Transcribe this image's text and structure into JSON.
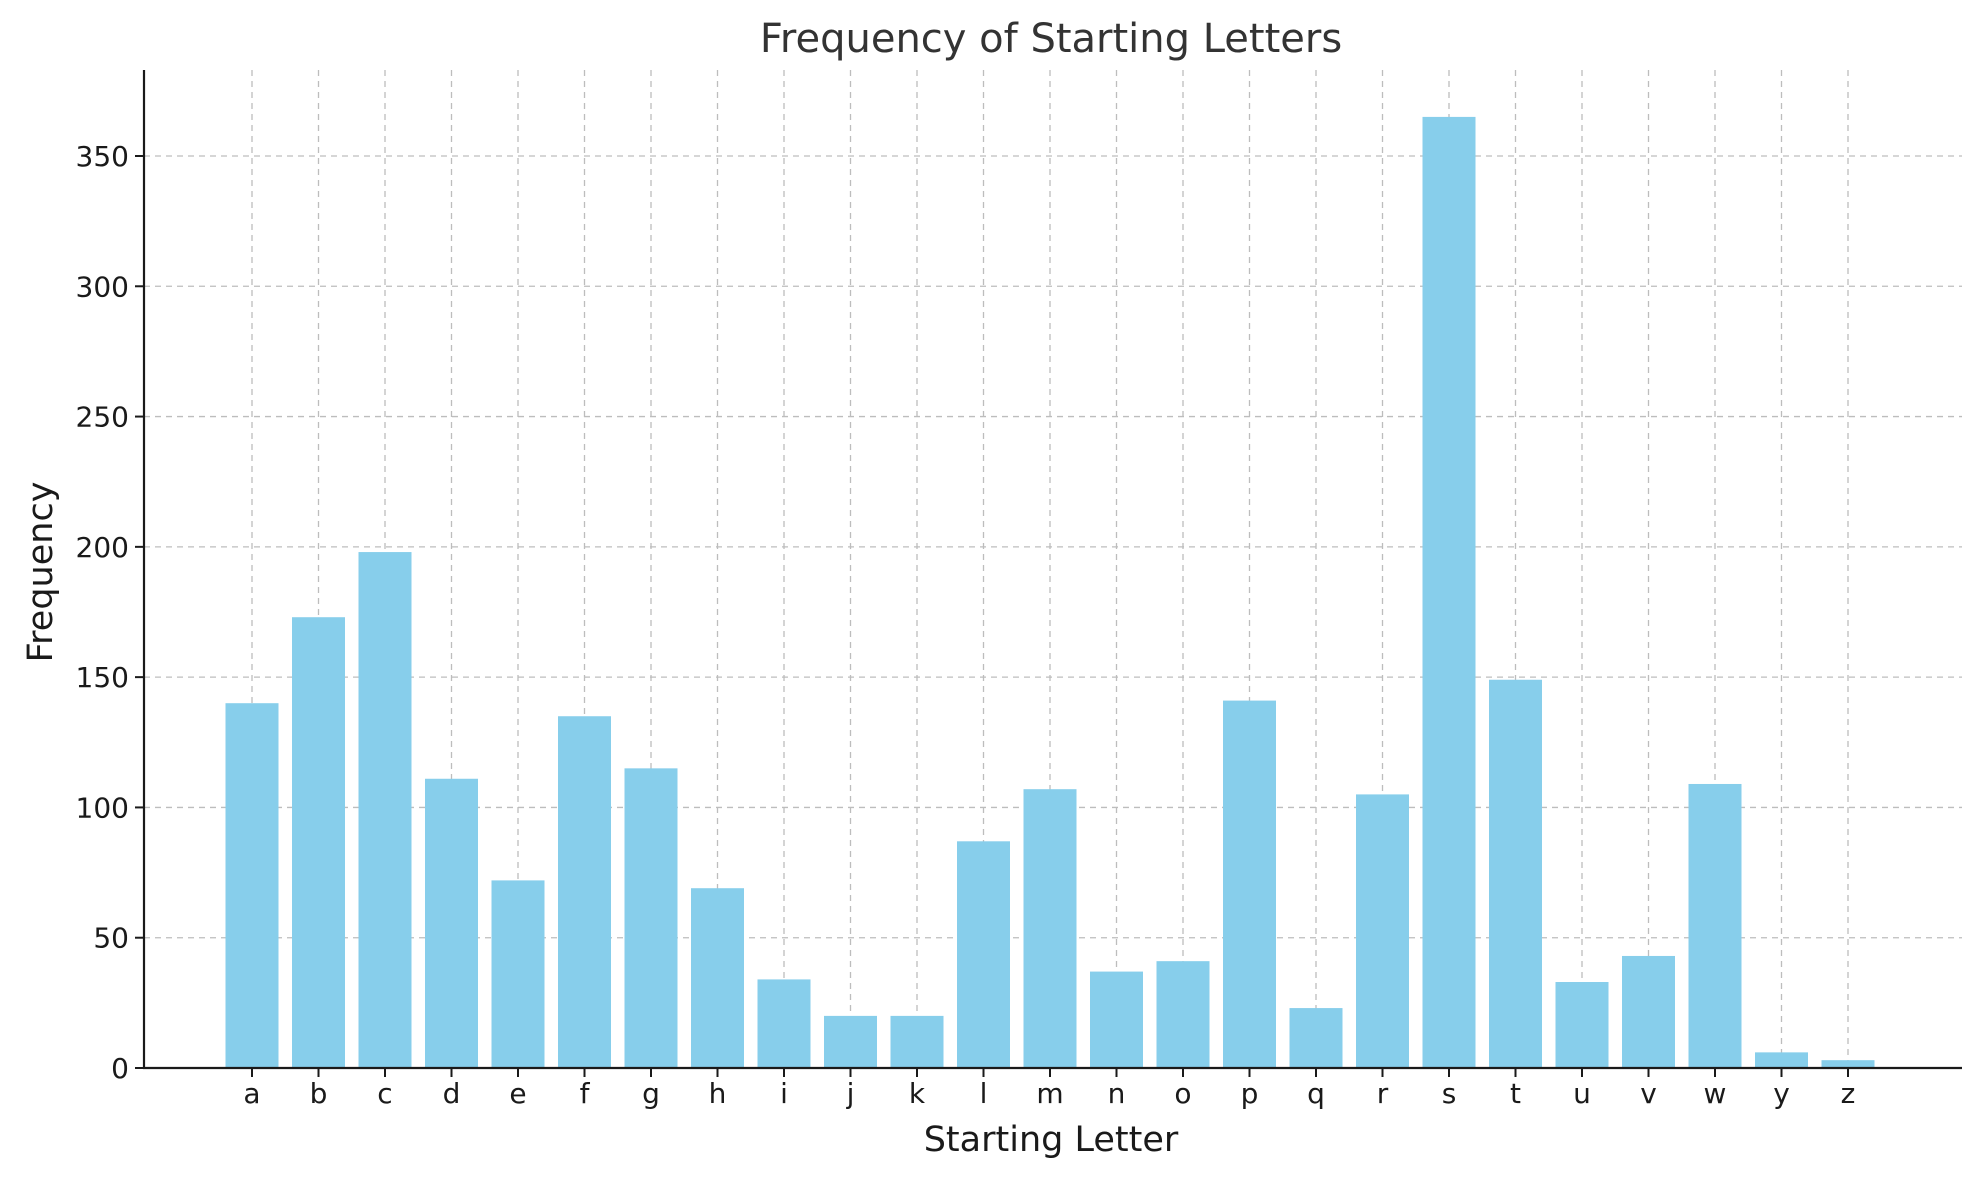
{
  "chart_data": {
    "type": "bar",
    "title": "Frequency of Starting Letters",
    "xlabel": "Starting Letter",
    "ylabel": "Frequency",
    "categories": [
      "a",
      "b",
      "c",
      "d",
      "e",
      "f",
      "g",
      "h",
      "i",
      "j",
      "k",
      "l",
      "m",
      "n",
      "o",
      "p",
      "q",
      "r",
      "s",
      "t",
      "u",
      "v",
      "w",
      "y",
      "z"
    ],
    "values": [
      140,
      173,
      198,
      111,
      72,
      135,
      115,
      69,
      34,
      20,
      20,
      87,
      107,
      37,
      41,
      141,
      23,
      105,
      365,
      149,
      33,
      43,
      109,
      6,
      3
    ],
    "yticks": [
      0,
      50,
      100,
      150,
      200,
      250,
      300,
      350
    ],
    "ylim": [
      0,
      383
    ],
    "grid": true,
    "bar_color": "#87CEEB"
  }
}
